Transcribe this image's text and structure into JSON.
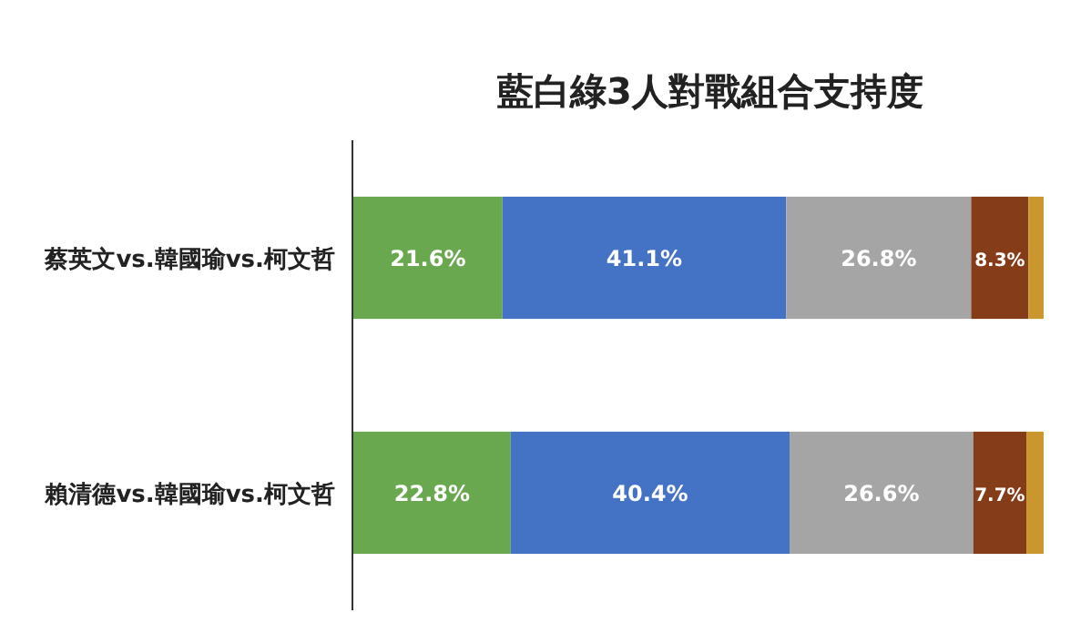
{
  "chart_data": {
    "type": "bar",
    "orientation": "horizontal",
    "stacked": true,
    "title": "藍白綠3人對戰組合支持度",
    "categories": [
      "蔡英文vs.韓國瑜vs.柯文哲",
      "賴清德vs.韓國瑜vs.柯文哲"
    ],
    "xlim": [
      0,
      100
    ],
    "tick_labels": "y",
    "series": [
      {
        "color": "#6aa84f",
        "values": [
          21.6,
          22.8
        ],
        "value_labels": [
          "21.6%",
          "22.8%"
        ]
      },
      {
        "color": "#4472c4",
        "values": [
          41.1,
          40.4
        ],
        "value_labels": [
          "41.1%",
          "40.4%"
        ]
      },
      {
        "color": "#a5a5a5",
        "values": [
          26.8,
          26.6
        ],
        "value_labels": [
          "26.8%",
          "26.6%"
        ]
      },
      {
        "color": "#843c19",
        "values": [
          8.3,
          7.7
        ],
        "value_labels": [
          "8.3%",
          "7.7%"
        ]
      },
      {
        "color": "#c9972e",
        "values": [
          2.2,
          2.5
        ],
        "value_labels": [
          null,
          null
        ]
      }
    ]
  }
}
